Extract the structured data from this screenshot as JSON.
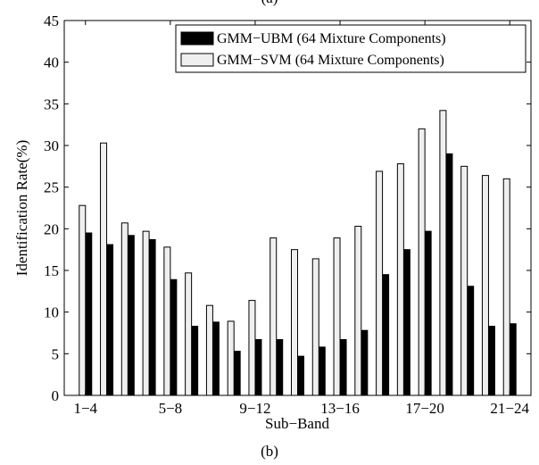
{
  "figure": {
    "top_caption": "(a)",
    "bottom_caption": "(b)"
  },
  "chart_data": {
    "type": "bar",
    "xlabel": "Sub−Band",
    "ylabel": "Identification Rate(%)",
    "ylim": [
      0,
      45
    ],
    "yticks": [
      0,
      5,
      10,
      15,
      20,
      25,
      30,
      35,
      40,
      45
    ],
    "xtick_labels": [
      {
        "index": 0,
        "label": "1−4"
      },
      {
        "index": 4,
        "label": "5−8"
      },
      {
        "index": 8,
        "label": "9−12"
      },
      {
        "index": 12,
        "label": "13−16"
      },
      {
        "index": 16,
        "label": "17−20"
      },
      {
        "index": 20,
        "label": "21−24"
      }
    ],
    "category_count": 21,
    "legend_position": "top-right",
    "grid": false,
    "series": [
      {
        "name": "GMM−UBM (64 Mixture Components)",
        "color": "#000000",
        "values": [
          19.5,
          18.1,
          19.2,
          18.7,
          13.9,
          8.3,
          8.8,
          5.3,
          6.7,
          6.7,
          4.7,
          5.8,
          6.7,
          7.8,
          14.5,
          17.5,
          19.7,
          29.0,
          13.1,
          8.3,
          8.6
        ]
      },
      {
        "name": "GMM−SVM (64 Mixture Components)",
        "color": "#efefef",
        "values": [
          22.8,
          30.3,
          20.7,
          19.7,
          17.8,
          14.7,
          10.8,
          8.9,
          11.4,
          18.9,
          17.5,
          16.4,
          18.9,
          20.3,
          26.9,
          27.8,
          32.0,
          34.2,
          27.5,
          26.4,
          26.0
        ]
      }
    ]
  }
}
